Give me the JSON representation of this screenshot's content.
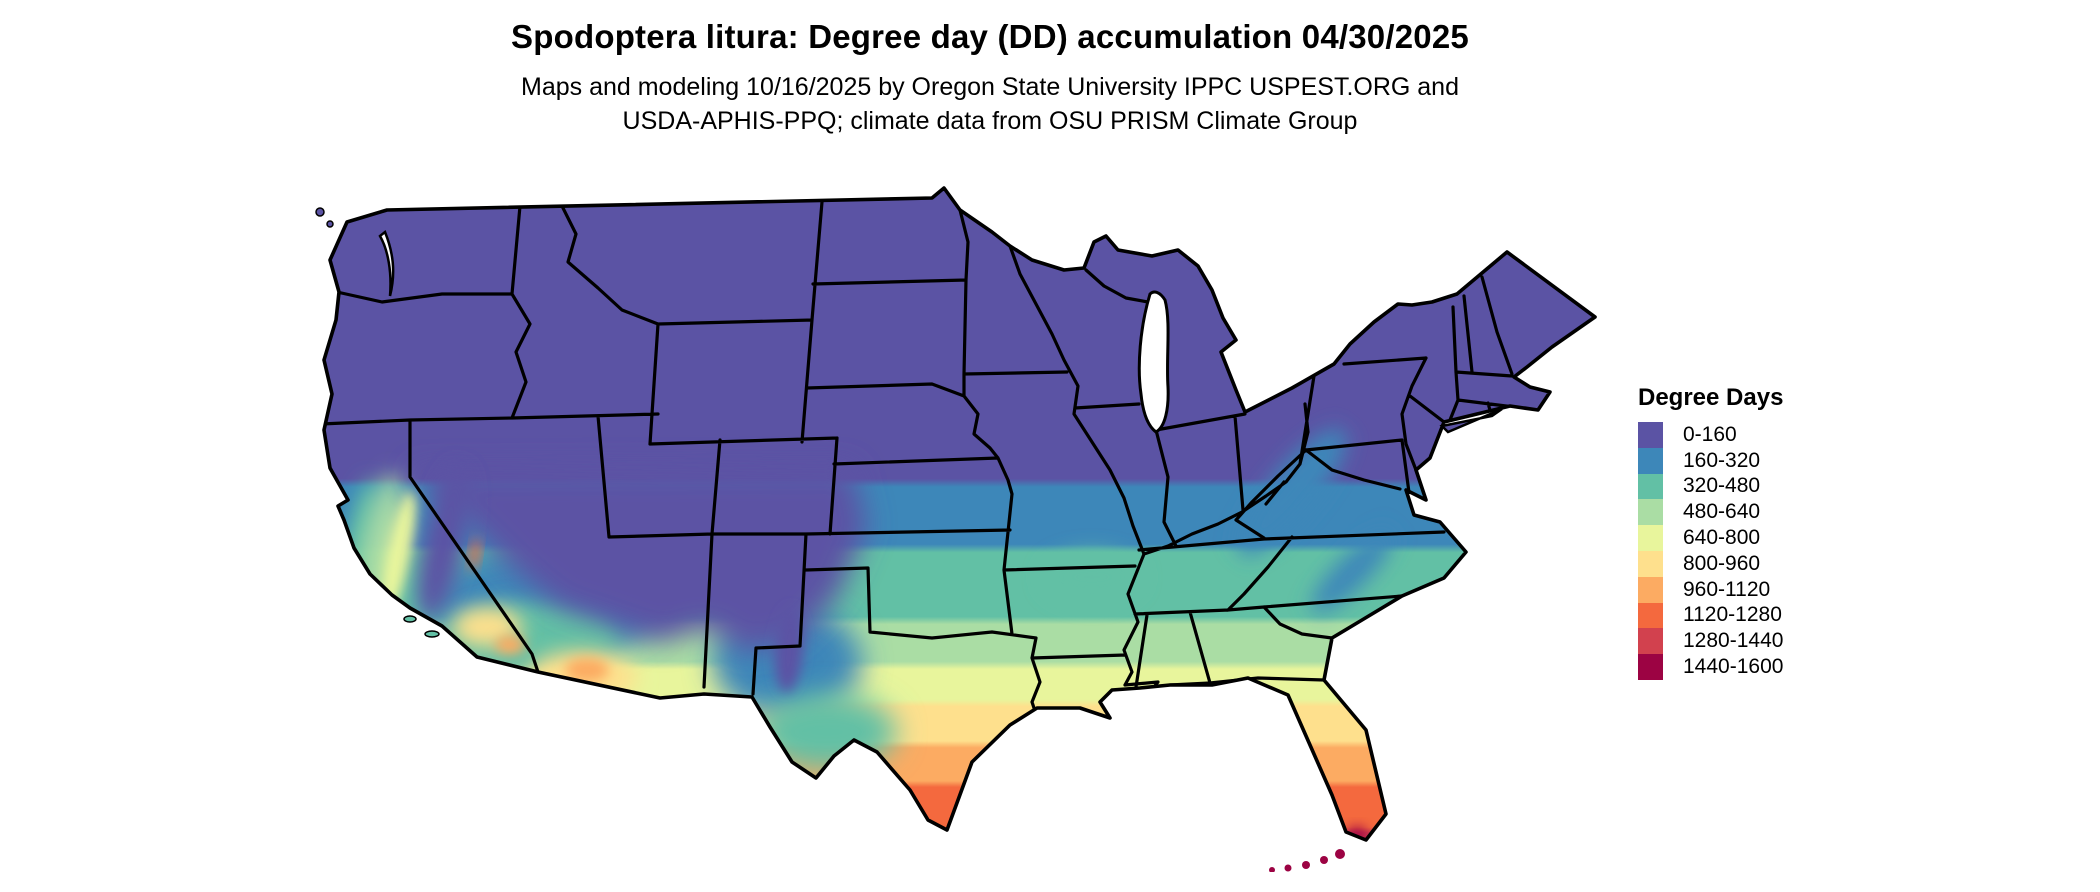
{
  "header": {
    "title": "Spodoptera litura: Degree day (DD) accumulation 04/30/2025",
    "subtitle_line1": "Maps and modeling 10/16/2025 by Oregon State University IPPC USPEST.ORG and",
    "subtitle_line2": "USDA-APHIS-PPQ; climate data from OSU PRISM Climate Group"
  },
  "legend": {
    "title": "Degree Days",
    "classes": [
      {
        "label": "0-160",
        "color": "#5b53a4"
      },
      {
        "label": "160-320",
        "color": "#3d87b9"
      },
      {
        "label": "320-480",
        "color": "#62c0a5"
      },
      {
        "label": "480-640",
        "color": "#aadda4"
      },
      {
        "label": "640-800",
        "color": "#e8f59c"
      },
      {
        "label": "800-960",
        "color": "#fee08d"
      },
      {
        "label": "960-1120",
        "color": "#fcab62"
      },
      {
        "label": "1120-1280",
        "color": "#f4693e"
      },
      {
        "label": "1280-1440",
        "color": "#d2414e"
      },
      {
        "label": "1440-1600",
        "color": "#9c0343"
      }
    ]
  },
  "chart_data": {
    "type": "choropleth_map",
    "region": "Contiguous United States with state boundaries",
    "title": "Spodoptera litura: Degree day (DD) accumulation 04/30/2025",
    "variable": "Accumulated degree days (DD)",
    "legend_title": "Degree Days",
    "bins": [
      {
        "range": "0-160",
        "color": "#5b53a4",
        "where": "Pacific Northwest, northern Rockies, Great Basin, northern plains, upper Midwest, Great Lakes, Northeast, Appalachian ridges"
      },
      {
        "range": "160-320",
        "color": "#3d87b9",
        "where": "central plains (Kansas, Missouri), Ohio valley, Kentucky, Virginia, mid-Appalachians, central New Mexico"
      },
      {
        "range": "320-480",
        "color": "#62c0a5",
        "where": "Oklahoma, Tennessee, Arkansas north, Carolinas piedmont, west Texas highlands, California coast"
      },
      {
        "range": "480-640",
        "color": "#aadda4",
        "where": "north Texas, Mississippi/Alabama/Georgia uplands, South Carolina"
      },
      {
        "range": "640-800",
        "color": "#e8f59c",
        "where": "central Texas, Gulf states interior, north Florida, California Central Valley"
      },
      {
        "range": "800-960",
        "color": "#fee08d",
        "where": "Gulf coast plain, central Florida, southern Arizona deserts"
      },
      {
        "range": "960-1120",
        "color": "#fcab62",
        "where": "south-central Texas coast, central-south Florida, Phoenix/Yuma area"
      },
      {
        "range": "1120-1280",
        "color": "#f4693e",
        "where": "deep south Texas, southeast Florida around Miami"
      },
      {
        "range": "1280-1440",
        "color": "#d2414e",
        "where": "lower Rio Grande tip, southern tip of Florida"
      },
      {
        "range": "1440-1600",
        "color": "#9c0343",
        "where": "Florida Keys"
      }
    ],
    "gradient_orientation": "low accumulation (purple) in north and mountain west grading to high accumulation (orange/red) toward southern Texas and south Florida"
  }
}
